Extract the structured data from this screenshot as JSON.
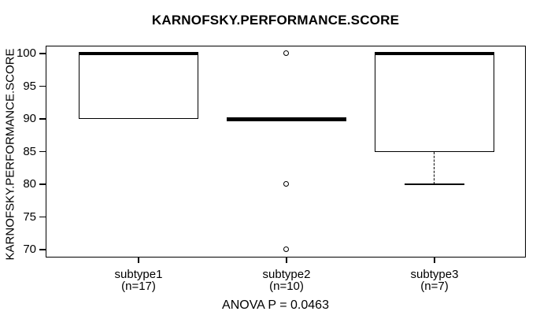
{
  "title": "KARNOFSKY.PERFORMANCE.SCORE",
  "chart_data": {
    "type": "boxplot",
    "title": "KARNOFSKY.PERFORMANCE.SCORE",
    "ylabel": "KARNOFSKY.PERFORMANCE.SCORE",
    "xlabel": "",
    "ylim": [
      70,
      100
    ],
    "y_ticks": [
      70,
      75,
      80,
      85,
      90,
      95,
      100
    ],
    "grid": "off",
    "annotation": "ANOVA P = 0.0463",
    "groups": [
      {
        "label": "subtype1",
        "n": "(n=17)",
        "whisker_low": 90,
        "q1": 90,
        "median": 100,
        "q3": 100,
        "whisker_high": 100,
        "outliers": []
      },
      {
        "label": "subtype2",
        "n": "(n=10)",
        "whisker_low": 90,
        "q1": 90,
        "median": 90,
        "q3": 90,
        "whisker_high": 90,
        "outliers": [
          100,
          80,
          70
        ]
      },
      {
        "label": "subtype3",
        "n": "(n=7)",
        "whisker_low": 80,
        "q1": 85,
        "median": 100,
        "q3": 100,
        "whisker_high": 100,
        "outliers": []
      }
    ],
    "colors": {
      "stroke": "#000000",
      "background": "#ffffff"
    }
  }
}
